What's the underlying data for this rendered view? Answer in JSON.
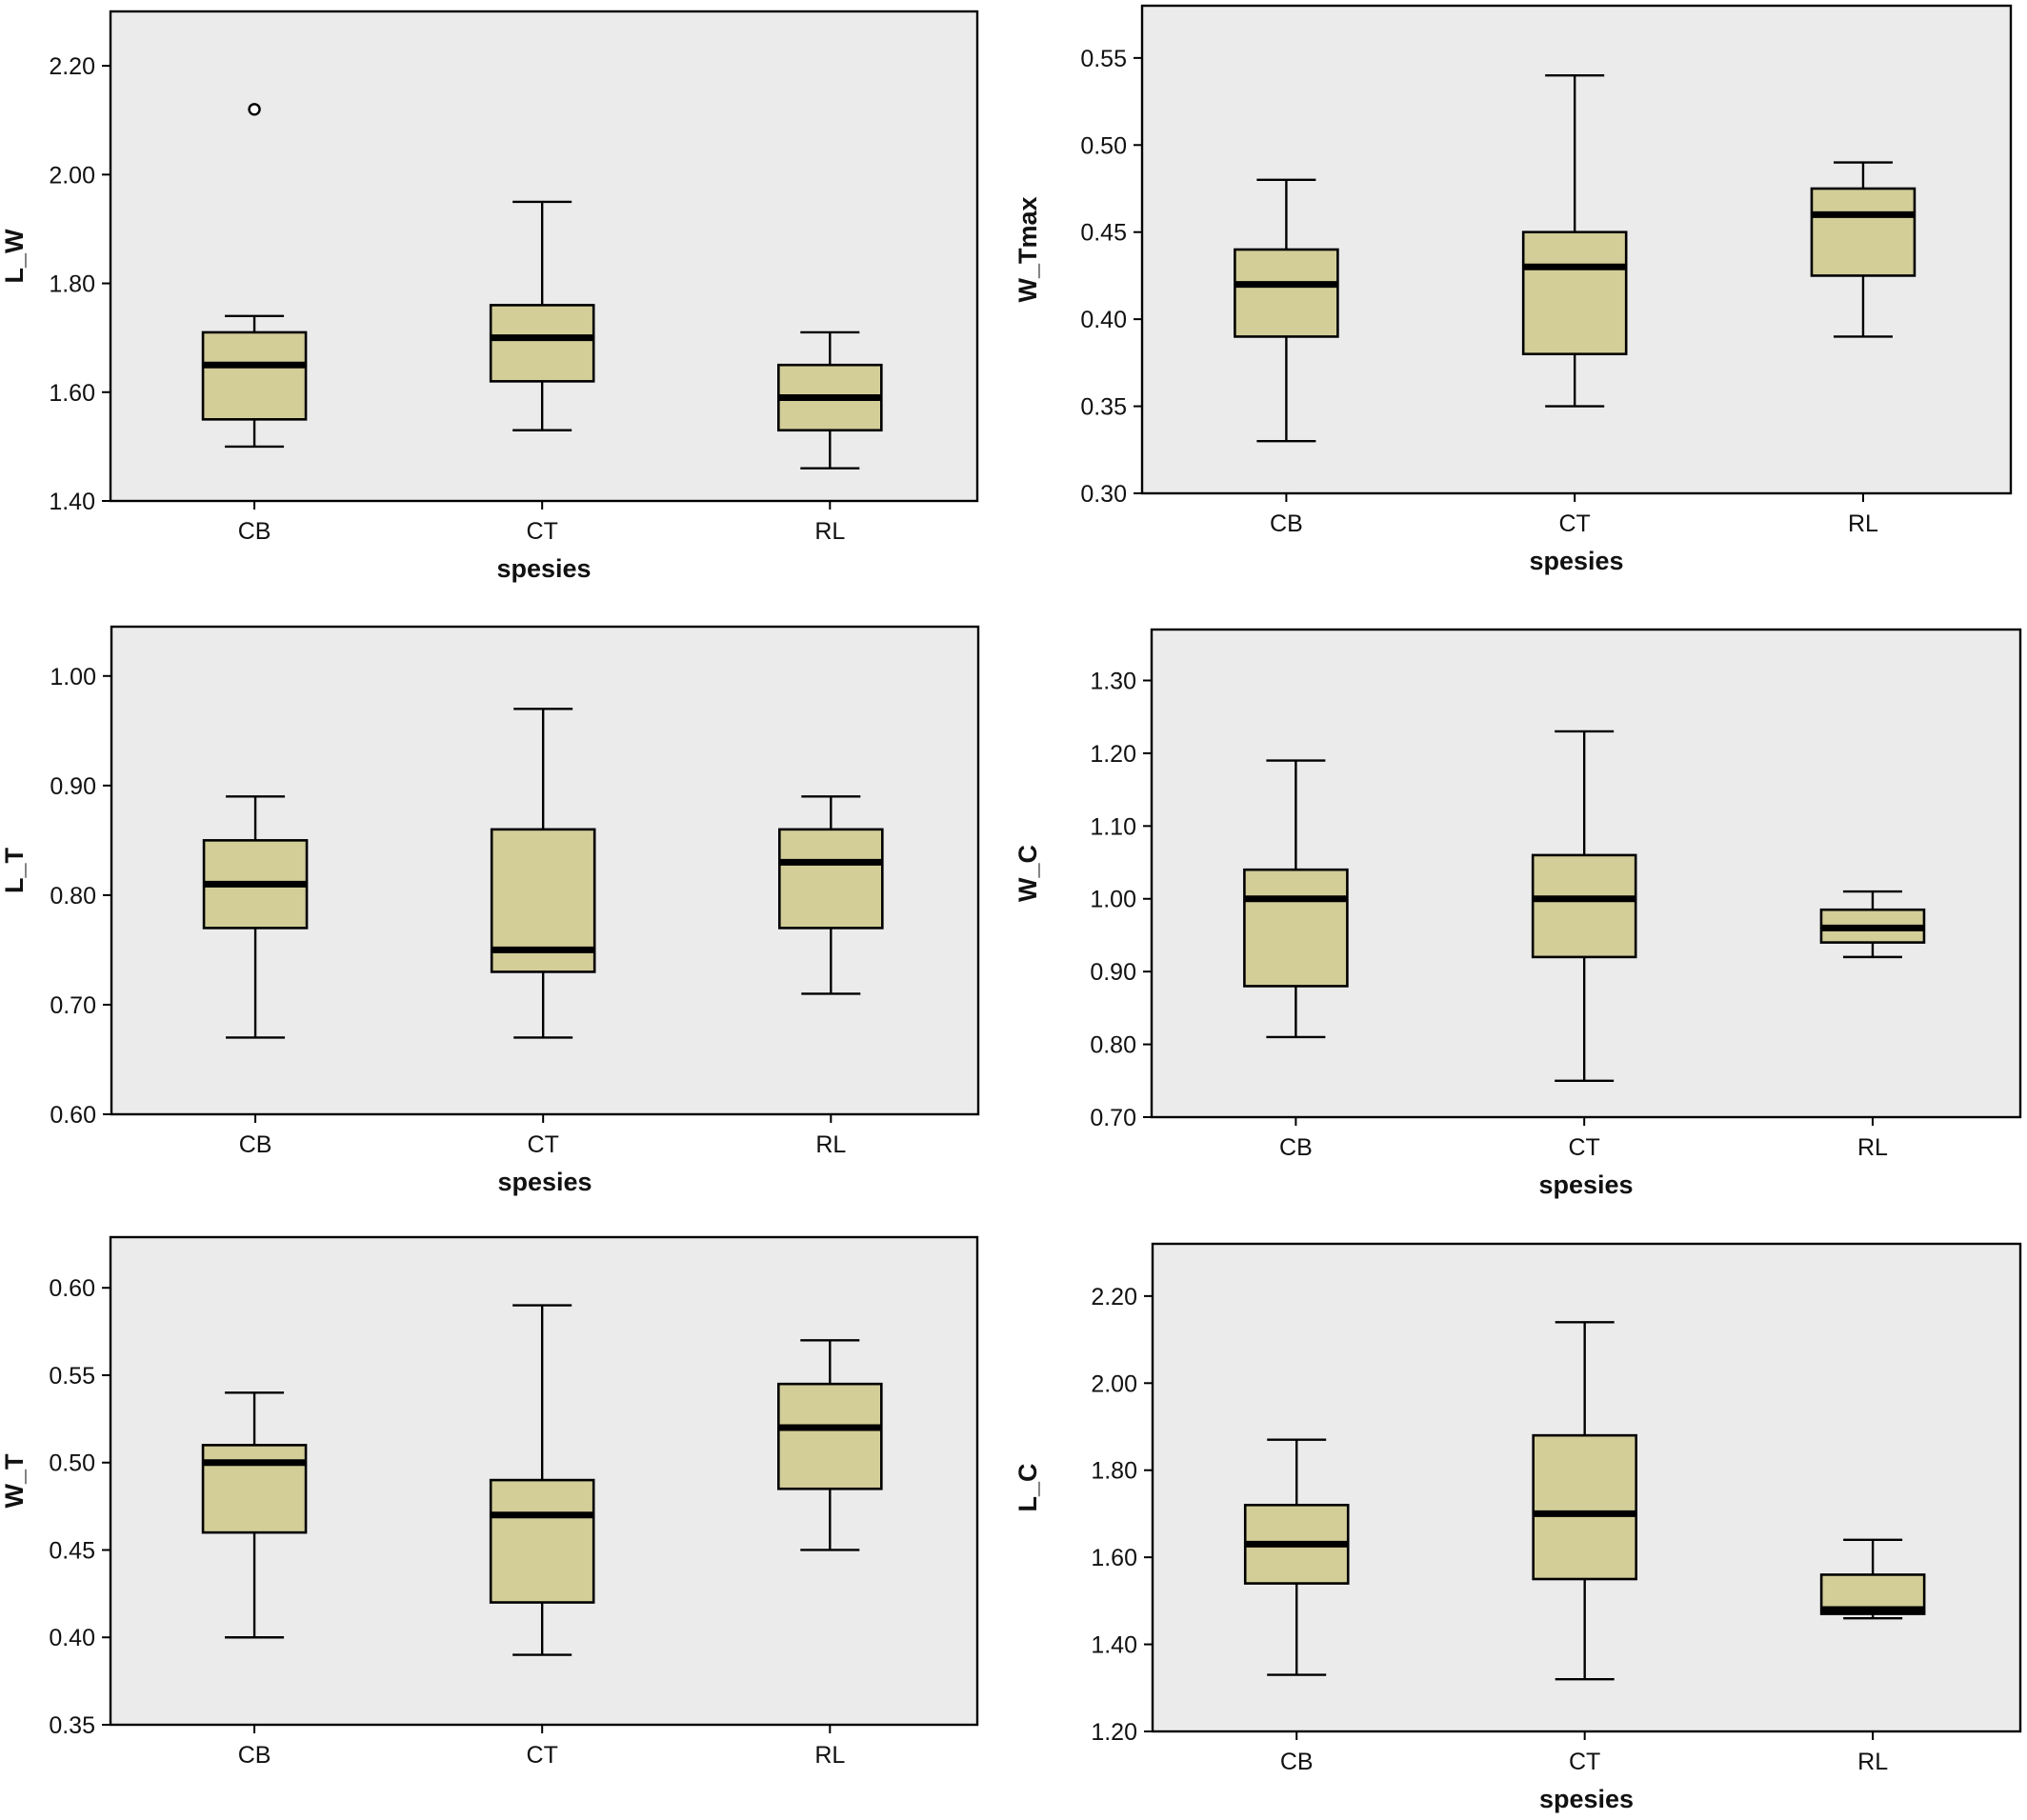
{
  "chart_data": [
    {
      "type": "box",
      "xlabel": "spesies",
      "ylabel": "L_W",
      "ylim": [
        1.4,
        2.3
      ],
      "yticks": [
        "1.40",
        "1.60",
        "1.80",
        "2.00",
        "2.20"
      ],
      "categories": [
        "CB",
        "CT",
        "RL"
      ],
      "boxes": [
        {
          "category": "CB",
          "min": 1.5,
          "q1": 1.55,
          "median": 1.65,
          "q3": 1.71,
          "max": 1.74,
          "outliers": [
            2.12
          ]
        },
        {
          "category": "CT",
          "min": 1.53,
          "q1": 1.62,
          "median": 1.7,
          "q3": 1.76,
          "max": 1.95,
          "outliers": []
        },
        {
          "category": "RL",
          "min": 1.46,
          "q1": 1.53,
          "median": 1.59,
          "q3": 1.65,
          "max": 1.71,
          "outliers": []
        }
      ]
    },
    {
      "type": "box",
      "xlabel": "spesies",
      "ylabel": "W_Tmax",
      "ylim": [
        0.3,
        0.58
      ],
      "yticks": [
        "0.30",
        "0.35",
        "0.40",
        "0.45",
        "0.50",
        "0.55"
      ],
      "categories": [
        "CB",
        "CT",
        "RL"
      ],
      "boxes": [
        {
          "category": "CB",
          "min": 0.33,
          "q1": 0.39,
          "median": 0.42,
          "q3": 0.44,
          "max": 0.48,
          "outliers": []
        },
        {
          "category": "CT",
          "min": 0.35,
          "q1": 0.38,
          "median": 0.43,
          "q3": 0.45,
          "max": 0.54,
          "outliers": []
        },
        {
          "category": "RL",
          "min": 0.39,
          "q1": 0.425,
          "median": 0.46,
          "q3": 0.475,
          "max": 0.49,
          "outliers": []
        }
      ]
    },
    {
      "type": "box",
      "xlabel": "spesies",
      "ylabel": "L_T",
      "ylim": [
        0.6,
        1.045
      ],
      "yticks": [
        "0.60",
        "0.70",
        "0.80",
        "0.90",
        "1.00"
      ],
      "categories": [
        "CB",
        "CT",
        "RL"
      ],
      "boxes": [
        {
          "category": "CB",
          "min": 0.67,
          "q1": 0.77,
          "median": 0.81,
          "q3": 0.85,
          "max": 0.89,
          "outliers": []
        },
        {
          "category": "CT",
          "min": 0.67,
          "q1": 0.73,
          "median": 0.75,
          "q3": 0.86,
          "max": 0.97,
          "outliers": []
        },
        {
          "category": "RL",
          "min": 0.71,
          "q1": 0.77,
          "median": 0.83,
          "q3": 0.86,
          "max": 0.89,
          "outliers": []
        }
      ]
    },
    {
      "type": "box",
      "xlabel": "spesies",
      "ylabel": "W_C",
      "ylim": [
        0.7,
        1.37
      ],
      "yticks": [
        "0.70",
        "0.80",
        "0.90",
        "1.00",
        "1.10",
        "1.20",
        "1.30"
      ],
      "categories": [
        "CB",
        "CT",
        "RL"
      ],
      "boxes": [
        {
          "category": "CB",
          "min": 0.81,
          "q1": 0.88,
          "median": 1.0,
          "q3": 1.04,
          "max": 1.19,
          "outliers": []
        },
        {
          "category": "CT",
          "min": 0.75,
          "q1": 0.92,
          "median": 1.0,
          "q3": 1.06,
          "max": 1.23,
          "outliers": []
        },
        {
          "category": "RL",
          "min": 0.92,
          "q1": 0.94,
          "median": 0.96,
          "q3": 0.985,
          "max": 1.01,
          "outliers": []
        }
      ]
    },
    {
      "type": "box",
      "xlabel": "",
      "ylabel": "W_T",
      "ylim": [
        0.35,
        0.629
      ],
      "yticks": [
        "0.35",
        "0.40",
        "0.45",
        "0.50",
        "0.55",
        "0.60"
      ],
      "categories": [
        "CB",
        "CT",
        "RL"
      ],
      "boxes": [
        {
          "category": "CB",
          "min": 0.4,
          "q1": 0.46,
          "median": 0.5,
          "q3": 0.51,
          "max": 0.54,
          "outliers": []
        },
        {
          "category": "CT",
          "min": 0.39,
          "q1": 0.42,
          "median": 0.47,
          "q3": 0.49,
          "max": 0.59,
          "outliers": []
        },
        {
          "category": "RL",
          "min": 0.45,
          "q1": 0.485,
          "median": 0.52,
          "q3": 0.545,
          "max": 0.57,
          "outliers": []
        }
      ]
    },
    {
      "type": "box",
      "xlabel": "spesies",
      "ylabel": "L_C",
      "ylim": [
        1.2,
        2.32
      ],
      "yticks": [
        "1.20",
        "1.40",
        "1.60",
        "1.80",
        "2.00",
        "2.20"
      ],
      "categories": [
        "CB",
        "CT",
        "RL"
      ],
      "boxes": [
        {
          "category": "CB",
          "min": 1.33,
          "q1": 1.54,
          "median": 1.63,
          "q3": 1.72,
          "max": 1.87,
          "outliers": []
        },
        {
          "category": "CT",
          "min": 1.32,
          "q1": 1.55,
          "median": 1.7,
          "q3": 1.88,
          "max": 2.14,
          "outliers": []
        },
        {
          "category": "RL",
          "min": 1.46,
          "q1": 1.47,
          "median": 1.48,
          "q3": 1.56,
          "max": 1.64,
          "outliers": []
        }
      ]
    }
  ]
}
